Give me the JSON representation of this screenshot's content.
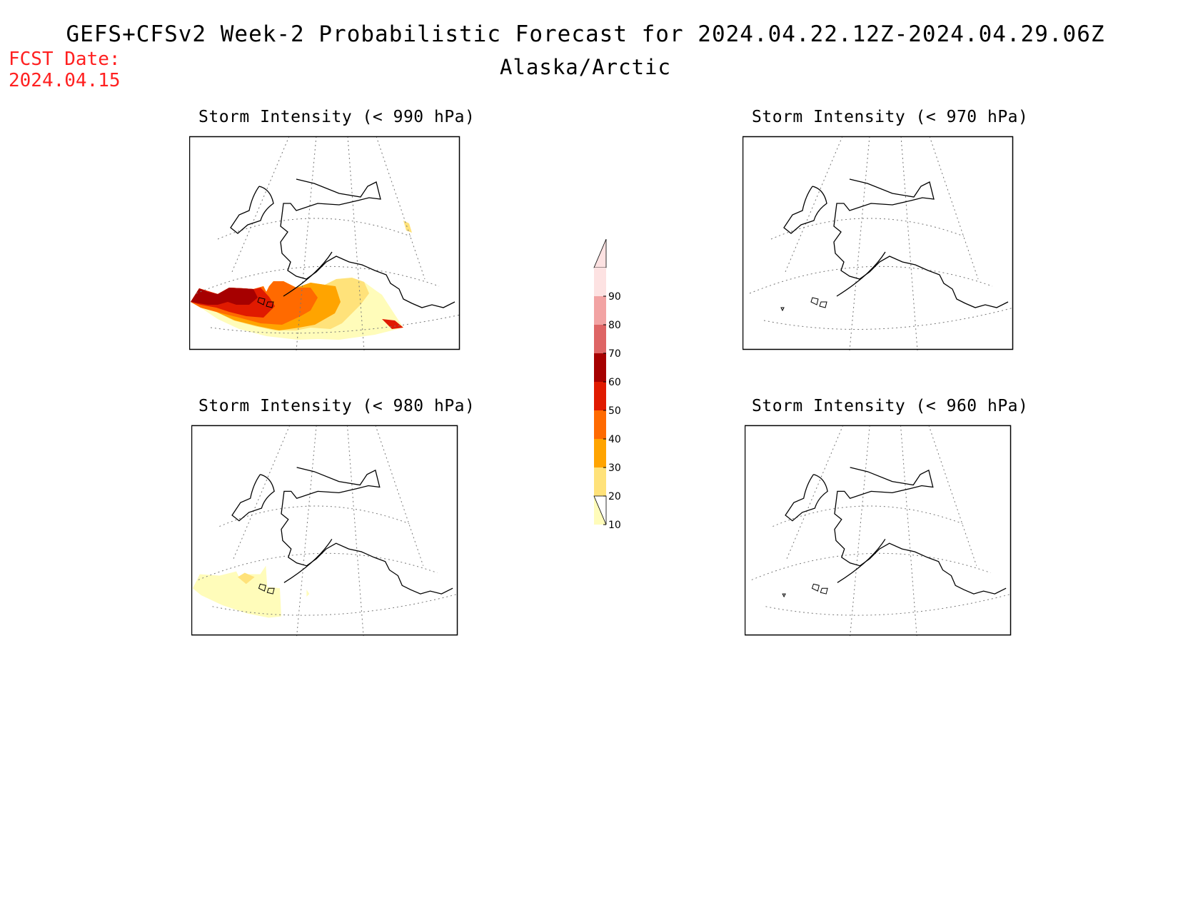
{
  "header": {
    "title": "GEFS+CFSv2 Week-2 Probabilistic Forecast for 2024.04.22.12Z-2024.04.29.06Z",
    "subtitle": "Alaska/Arctic",
    "fcst_label": "FCST Date:",
    "fcst_date": "2024.04.15"
  },
  "panels": [
    {
      "id": "p990",
      "title": "Storm Intensity (< 990 hPa)",
      "shading": "high-probability band along Aleutians / Gulf of Alaska, 10-70%"
    },
    {
      "id": "p970",
      "title": "Storm Intensity (< 970 hPa)",
      "shading": "none"
    },
    {
      "id": "p980",
      "title": "Storm Intensity (< 980 hPa)",
      "shading": "10-30% band west Aleutians"
    },
    {
      "id": "p960",
      "title": "Storm Intensity (< 960 hPa)",
      "shading": "none"
    }
  ],
  "colorbar": {
    "ticks": [
      "10",
      "20",
      "30",
      "40",
      "50",
      "60",
      "70",
      "80",
      "90"
    ],
    "colors": [
      "#fffcba",
      "#ffe27a",
      "#ffa400",
      "#ff6a00",
      "#e01a00",
      "#a60000",
      "#de6565",
      "#f2a3a3",
      "#fde2e2"
    ]
  }
}
